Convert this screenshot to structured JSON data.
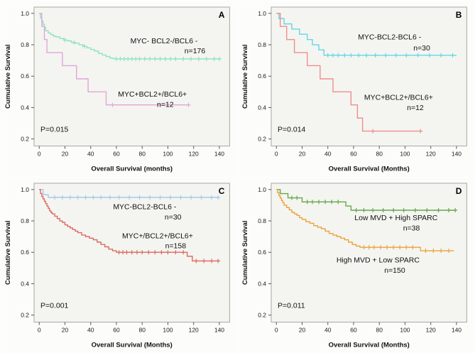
{
  "figure": {
    "background": "#fdfdfc",
    "plot_background": "#f4f5f0",
    "axis_border_color": "#a8aaa0"
  },
  "chart_data": [
    {
      "type": "line",
      "subtype": "kaplan-meier",
      "panel": "A",
      "xlabel": "Overall Survival (months)",
      "ylabel": "Cumulative Survival",
      "xlim": [
        0,
        140
      ],
      "ylim": [
        0.2,
        1.0
      ],
      "xticks": [
        0,
        20,
        40,
        60,
        80,
        100,
        120,
        140
      ],
      "yticks": [
        0.2,
        0.4,
        0.6,
        0.8,
        1.0
      ],
      "pvalue": "P=0.015",
      "legend_position": "inside",
      "grid": false,
      "series": [
        {
          "name": "MYC- BCL2-/BCL6 -",
          "n_label": "n=176",
          "color": "#8ee2c5",
          "steps": [
            [
              1,
              0.97
            ],
            [
              2,
              0.95
            ],
            [
              3,
              0.93
            ],
            [
              4,
              0.91
            ],
            [
              5,
              0.89
            ],
            [
              7,
              0.875
            ],
            [
              9,
              0.865
            ],
            [
              11,
              0.855
            ],
            [
              13,
              0.85
            ],
            [
              16,
              0.84
            ],
            [
              19,
              0.83
            ],
            [
              22,
              0.825
            ],
            [
              25,
              0.815
            ],
            [
              28,
              0.81
            ],
            [
              31,
              0.8
            ],
            [
              34,
              0.79
            ],
            [
              37,
              0.78
            ],
            [
              40,
              0.77
            ],
            [
              43,
              0.76
            ],
            [
              46,
              0.745
            ],
            [
              49,
              0.735
            ],
            [
              52,
              0.725
            ],
            [
              55,
              0.715
            ],
            [
              58,
              0.71
            ]
          ],
          "end": 140,
          "censors": [
            20,
            27,
            35,
            60,
            63,
            66,
            69,
            72,
            75,
            78,
            82,
            86,
            90,
            94,
            98,
            102,
            106,
            112,
            118,
            124,
            130,
            136,
            140
          ],
          "label_pos": {
            "x": 97,
            "y": 0.81
          },
          "n_pos": {
            "x": 121,
            "y": 0.745
          }
        },
        {
          "name": "MYC+BCL2+/BCL6+",
          "n_label": "n=12",
          "color": "#e3a4da",
          "steps": [
            [
              2,
              0.917
            ],
            [
              4,
              0.833
            ],
            [
              6,
              0.75
            ],
            [
              18,
              0.667
            ],
            [
              29,
              0.583
            ],
            [
              38,
              0.5
            ],
            [
              52,
              0.417
            ]
          ],
          "end": 116,
          "censors": [
            57,
            116
          ],
          "label_pos": {
            "x": 88,
            "y": 0.47
          },
          "n_pos": {
            "x": 98,
            "y": 0.405
          }
        }
      ]
    },
    {
      "type": "line",
      "subtype": "kaplan-meier",
      "panel": "B",
      "xlabel": "Overall  Survival (Months)",
      "ylabel": "Cumulative Survival",
      "xlim": [
        0,
        140
      ],
      "ylim": [
        0.2,
        1.0
      ],
      "xticks": [
        0,
        20,
        40,
        60,
        80,
        100,
        120,
        140
      ],
      "yticks": [
        0.2,
        0.4,
        0.6,
        0.8,
        1.0
      ],
      "pvalue": "P=0.014",
      "legend_position": "inside",
      "grid": false,
      "series": [
        {
          "name": "MYC-BCL2-BCL6 -",
          "n_label": "n=30",
          "color": "#63d6e6",
          "steps": [
            [
              2,
              0.967
            ],
            [
              6,
              0.933
            ],
            [
              12,
              0.9
            ],
            [
              18,
              0.867
            ],
            [
              24,
              0.833
            ],
            [
              28,
              0.8
            ],
            [
              33,
              0.767
            ],
            [
              37,
              0.733
            ]
          ],
          "end": 140,
          "censors": [
            40,
            44,
            48,
            53,
            58,
            64,
            70,
            77,
            85,
            93,
            101,
            110,
            119,
            128,
            137
          ],
          "label_pos": {
            "x": 88,
            "y": 0.835
          },
          "n_pos": {
            "x": 113,
            "y": 0.765
          }
        },
        {
          "name": "MYC+BCL2+/BCL6+",
          "n_label": "n=12",
          "color": "#ee8e8e",
          "steps": [
            [
              3,
              0.917
            ],
            [
              8,
              0.833
            ],
            [
              14,
              0.75
            ],
            [
              24,
              0.667
            ],
            [
              34,
              0.583
            ],
            [
              44,
              0.5
            ],
            [
              58,
              0.417
            ],
            [
              63,
              0.333
            ],
            [
              67,
              0.25
            ]
          ],
          "end": 112,
          "censors": [
            75,
            112
          ],
          "label_pos": {
            "x": 95,
            "y": 0.45
          },
          "n_pos": {
            "x": 108,
            "y": 0.385
          }
        }
      ]
    },
    {
      "type": "line",
      "subtype": "kaplan-meier",
      "panel": "C",
      "xlabel": "Overall Survival (Months)",
      "ylabel": "Cumulative Survival",
      "xlim": [
        0,
        140
      ],
      "ylim": [
        0.2,
        1.0
      ],
      "xticks": [
        0,
        20,
        40,
        60,
        80,
        100,
        120,
        140
      ],
      "yticks": [
        0.2,
        0.4,
        0.6,
        0.8,
        1.0
      ],
      "pvalue": "P=0.001",
      "legend_position": "inside",
      "grid": false,
      "series": [
        {
          "name": "MYC-BCL2-BCL6 -",
          "n_label": "n=30",
          "color": "#a6c8ef",
          "steps": [
            [
              3,
              0.967
            ],
            [
              7,
              0.95
            ]
          ],
          "end": 140,
          "censors": [
            12,
            18,
            24,
            30,
            36,
            42,
            48,
            55,
            62,
            70,
            78,
            86,
            94,
            102,
            110,
            118,
            126,
            134,
            139
          ],
          "label_pos": {
            "x": 82,
            "y": 0.875
          },
          "n_pos": {
            "x": 104,
            "y": 0.81
          }
        },
        {
          "name": "MYC+/BCL2+/BCL6+",
          "n_label": "n=158",
          "color": "#dd6a62",
          "steps": [
            [
              1,
              0.975
            ],
            [
              2,
              0.955
            ],
            [
              3,
              0.94
            ],
            [
              4,
              0.925
            ],
            [
              5,
              0.91
            ],
            [
              6,
              0.895
            ],
            [
              7,
              0.88
            ],
            [
              8,
              0.865
            ],
            [
              9,
              0.855
            ],
            [
              10,
              0.845
            ],
            [
              12,
              0.83
            ],
            [
              14,
              0.815
            ],
            [
              16,
              0.8
            ],
            [
              18,
              0.79
            ],
            [
              20,
              0.775
            ],
            [
              22,
              0.765
            ],
            [
              24,
              0.755
            ],
            [
              26,
              0.745
            ],
            [
              28,
              0.735
            ],
            [
              30,
              0.725
            ],
            [
              33,
              0.71
            ],
            [
              36,
              0.7
            ],
            [
              39,
              0.69
            ],
            [
              42,
              0.68
            ],
            [
              45,
              0.665
            ],
            [
              48,
              0.65
            ],
            [
              51,
              0.635
            ],
            [
              54,
              0.62
            ],
            [
              57,
              0.61
            ],
            [
              60,
              0.6
            ],
            [
              115,
              0.575
            ],
            [
              119,
              0.545
            ]
          ],
          "end": 140,
          "censors": [
            62,
            65,
            68,
            72,
            76,
            80,
            85,
            90,
            95,
            100,
            106,
            112,
            122,
            128,
            134,
            139
          ],
          "label_pos": {
            "x": 92,
            "y": 0.69
          },
          "n_pos": {
            "x": 106,
            "y": 0.625
          }
        }
      ]
    },
    {
      "type": "line",
      "subtype": "kaplan-meier",
      "panel": "D",
      "xlabel": "Overall Survival (Months)",
      "ylabel": "Cumulative Survival",
      "xlim": [
        0,
        140
      ],
      "ylim": [
        0.2,
        1.0
      ],
      "xticks": [
        0,
        20,
        40,
        60,
        80,
        100,
        120,
        140
      ],
      "yticks": [
        0.2,
        0.4,
        0.6,
        0.8,
        1.0
      ],
      "pvalue": "P=0.011",
      "legend_position": "inside",
      "grid": false,
      "series": [
        {
          "name": "Low MVD + High SPARC",
          "n_label": "n=38",
          "color": "#66a850",
          "steps": [
            [
              3,
              0.974
            ],
            [
              9,
              0.947
            ],
            [
              20,
              0.921
            ],
            [
              54,
              0.895
            ],
            [
              58,
              0.868
            ]
          ],
          "end": 140,
          "censors": [
            12,
            16,
            24,
            28,
            33,
            38,
            43,
            48,
            62,
            68,
            75,
            83,
            91,
            99,
            108,
            117,
            126,
            134,
            139
          ],
          "label_pos": {
            "x": 93,
            "y": 0.805
          },
          "n_pos": {
            "x": 105,
            "y": 0.74
          }
        },
        {
          "name": "High MVD + Low SPARC",
          "n_label": "n=150",
          "color": "#eda23f",
          "steps": [
            [
              1,
              0.98
            ],
            [
              2,
              0.96
            ],
            [
              3,
              0.945
            ],
            [
              4,
              0.93
            ],
            [
              5,
              0.915
            ],
            [
              6,
              0.9
            ],
            [
              8,
              0.885
            ],
            [
              10,
              0.87
            ],
            [
              12,
              0.855
            ],
            [
              14,
              0.845
            ],
            [
              16,
              0.835
            ],
            [
              18,
              0.82
            ],
            [
              20,
              0.81
            ],
            [
              23,
              0.795
            ],
            [
              26,
              0.785
            ],
            [
              29,
              0.77
            ],
            [
              32,
              0.76
            ],
            [
              35,
              0.75
            ],
            [
              38,
              0.735
            ],
            [
              41,
              0.72
            ],
            [
              44,
              0.71
            ],
            [
              47,
              0.7
            ],
            [
              50,
              0.69
            ],
            [
              53,
              0.68
            ],
            [
              56,
              0.665
            ],
            [
              59,
              0.65
            ],
            [
              62,
              0.64
            ],
            [
              65,
              0.632
            ],
            [
              112,
              0.61
            ]
          ],
          "end": 138,
          "censors": [
            68,
            72,
            76,
            81,
            86,
            91,
            96,
            101,
            106,
            116,
            122,
            128,
            134
          ],
          "label_pos": {
            "x": 79,
            "y": 0.535
          },
          "n_pos": {
            "x": 92,
            "y": 0.47
          }
        }
      ]
    }
  ]
}
